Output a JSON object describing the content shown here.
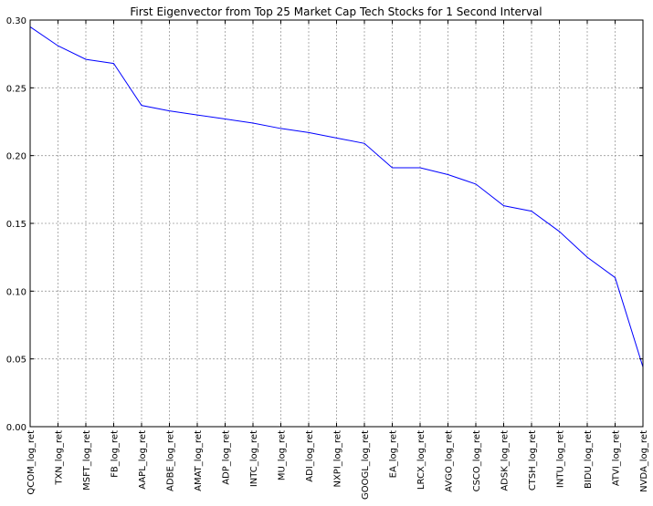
{
  "chart_data": {
    "type": "line",
    "title": "First Eigenvector from Top 25 Market Cap Tech Stocks for 1 Second Interval",
    "xlabel": "",
    "ylabel": "",
    "categories": [
      "QCOM_log_ret",
      "TXN_log_ret",
      "MSFT_log_ret",
      "FB_log_ret",
      "AAPL_log_ret",
      "ADBE_log_ret",
      "AMAT_log_ret",
      "ADP_log_ret",
      "INTC_log_ret",
      "MU_log_ret",
      "ADI_log_ret",
      "NXPI_log_ret",
      "GOOGL_log_ret",
      "EA_log_ret",
      "LRCX_log_ret",
      "AVGO_log_ret",
      "CSCO_log_ret",
      "ADSK_log_ret",
      "CTSH_log_ret",
      "INTU_log_ret",
      "BIDU_log_ret",
      "ATVI_log_ret",
      "NVDA_log_ret"
    ],
    "series": [
      {
        "values": [
          0.295,
          0.281,
          0.271,
          0.268,
          0.237,
          0.233,
          0.23,
          0.227,
          0.224,
          0.22,
          0.217,
          0.213,
          0.209,
          0.191,
          0.191,
          0.186,
          0.179,
          0.163,
          0.159,
          0.144,
          0.125,
          0.11,
          0.044
        ],
        "color": "#0000ff"
      }
    ],
    "ylim": [
      0.0,
      0.3
    ],
    "yticks": [
      "0.00",
      "0.05",
      "0.10",
      "0.15",
      "0.20",
      "0.25",
      "0.30"
    ],
    "grid": true,
    "legend": "none"
  }
}
